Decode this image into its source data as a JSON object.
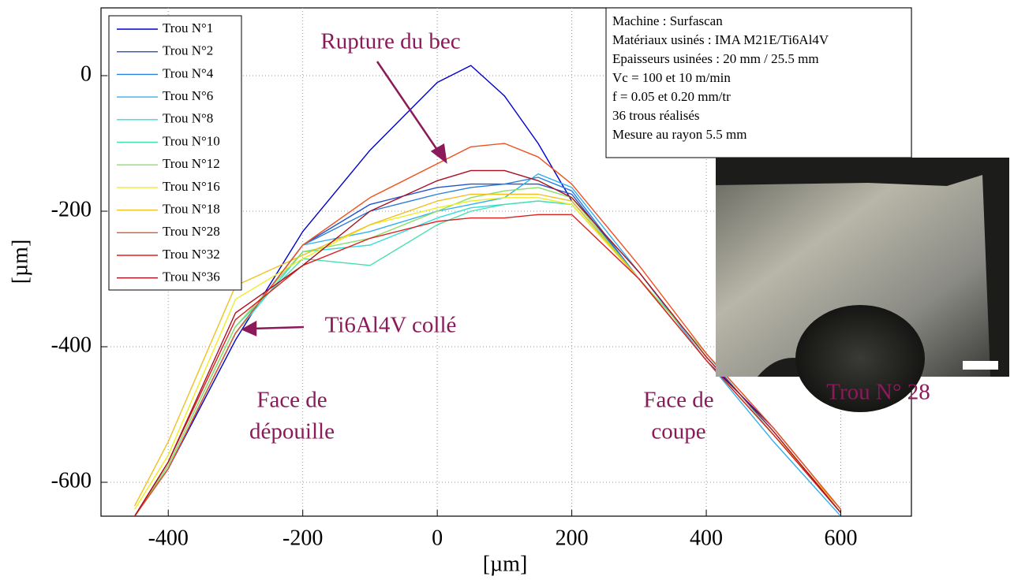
{
  "chart_data": {
    "type": "line",
    "xlabel": "[µm]",
    "ylabel": "[µm]",
    "xlim": [
      -500,
      705
    ],
    "ylim": [
      -650,
      100
    ],
    "xticks": [
      -400,
      -200,
      0,
      200,
      400,
      600
    ],
    "yticks": [
      -600,
      -400,
      -200,
      0
    ],
    "grid": true,
    "legend": "upper left",
    "x": [
      -450,
      -400,
      -300,
      -200,
      -100,
      0,
      50,
      100,
      150,
      200,
      300,
      400,
      500,
      600
    ],
    "series": [
      {
        "name": "Trou N°1",
        "color": "#0000cc",
        "values": [
          -650,
          -580,
          -390,
          -230,
          -110,
          -10,
          15,
          -30,
          -100,
          -185,
          -300,
          -420,
          -520,
          -640
        ]
      },
      {
        "name": "Trou N°2",
        "color": "#2255cc",
        "values": [
          -650,
          -580,
          -380,
          -250,
          -190,
          -165,
          -160,
          -160,
          -160,
          -175,
          -300,
          -420,
          -530,
          -640
        ]
      },
      {
        "name": "Trou N°4",
        "color": "#2a7fdd",
        "values": [
          -650,
          -580,
          -380,
          -250,
          -200,
          -175,
          -165,
          -160,
          -150,
          -170,
          -300,
          -420,
          -530,
          -645
        ]
      },
      {
        "name": "Trou N°6",
        "color": "#33b0ee",
        "values": [
          -650,
          -580,
          -380,
          -250,
          -230,
          -200,
          -190,
          -180,
          -145,
          -165,
          -290,
          -420,
          -540,
          -650
        ]
      },
      {
        "name": "Trou N°8",
        "color": "#33dddd",
        "values": [
          -650,
          -580,
          -380,
          -260,
          -250,
          -210,
          -195,
          -190,
          -185,
          -190,
          -300,
          -410,
          -530,
          -645
        ]
      },
      {
        "name": "Trou N°10",
        "color": "#44e0b0",
        "values": [
          -650,
          -575,
          -370,
          -270,
          -280,
          -220,
          -200,
          -190,
          -185,
          -190,
          -300,
          -420,
          -530,
          -645
        ]
      },
      {
        "name": "Trou N°12",
        "color": "#88e066",
        "values": [
          -650,
          -575,
          -370,
          -260,
          -240,
          -200,
          -180,
          -170,
          -165,
          -180,
          -300,
          -410,
          -520,
          -640
        ]
      },
      {
        "name": "Trou N°16",
        "color": "#eeee22",
        "values": [
          -640,
          -560,
          -330,
          -270,
          -220,
          -195,
          -185,
          -180,
          -180,
          -190,
          -300,
          -420,
          -530,
          -640
        ]
      },
      {
        "name": "Trou N°18",
        "color": "#f0c020",
        "values": [
          -635,
          -540,
          -310,
          -265,
          -220,
          -185,
          -175,
          -175,
          -175,
          -185,
          -300,
          -420,
          -530,
          -640
        ]
      },
      {
        "name": "Trou N°28",
        "color": "#f05020",
        "values": [
          -650,
          -580,
          -380,
          -250,
          -180,
          -130,
          -105,
          -100,
          -120,
          -160,
          -280,
          -410,
          -520,
          -640
        ]
      },
      {
        "name": "Trou N°32",
        "color": "#dd2020",
        "values": [
          -650,
          -570,
          -360,
          -280,
          -240,
          -215,
          -210,
          -210,
          -205,
          -205,
          -300,
          -420,
          -530,
          -645
        ]
      },
      {
        "name": "Trou N°36",
        "color": "#aa1020",
        "values": [
          -650,
          -570,
          -350,
          -280,
          -200,
          -155,
          -140,
          -140,
          -155,
          -180,
          -290,
          -415,
          -525,
          -645
        ]
      }
    ],
    "info_box": [
      "Machine : Surfascan",
      "Matériaux usinés : IMA M21E/Ti6Al4V",
      "Epaisseurs usinées : 20 mm / 25.5 mm",
      "Vc = 100 et 10 m/min",
      "f  = 0.05 et 0.20 mm/tr",
      "36 trous réalisés",
      "Mesure au rayon 5.5 mm"
    ],
    "annotations": [
      "Rupture du bec",
      "Ti6Al4V collé"
    ],
    "face_labels": [
      [
        "Face de",
        "dépouille"
      ],
      [
        "Face de",
        "coupe"
      ]
    ],
    "photo_caption": "Trou N° 28"
  }
}
